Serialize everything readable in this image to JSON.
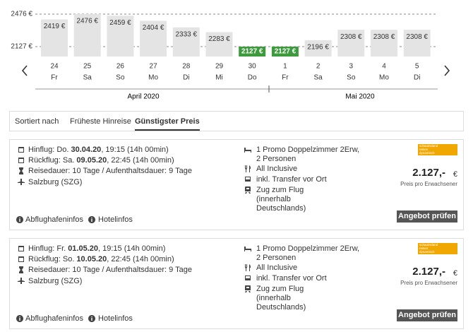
{
  "price_chart": {
    "type": "bar",
    "days": [
      "24",
      "25",
      "26",
      "27",
      "28",
      "29",
      "30",
      "1",
      "2",
      "3",
      "4",
      "5"
    ],
    "weekdays": [
      "Fr",
      "Sa",
      "So",
      "Mo",
      "Di",
      "Mi",
      "Do",
      "Fr",
      "Sa",
      "So",
      "Mo",
      "Di"
    ],
    "values": [
      2419,
      2476,
      2459,
      2404,
      2333,
      2283,
      2127,
      2127,
      2196,
      2308,
      2308,
      2308
    ],
    "value_labels": [
      "2419 €",
      "2476 €",
      "2459 €",
      "2404 €",
      "2333 €",
      "2283 €",
      "2127 €",
      "2127 €",
      "2196 €",
      "2308 €",
      "2308 €",
      "2308 €"
    ],
    "ylim": [
      2021,
      2476
    ],
    "yticks": [
      {
        "value": 2476,
        "label": "2476 €"
      },
      {
        "value": 2127,
        "label": "2127 €"
      }
    ],
    "color": "#e4e4e4",
    "highlight_color": "#3d9a3d",
    "months": [
      "April 2020",
      "Mai 2020"
    ]
  },
  "sort": {
    "label": "Sortiert nach",
    "options": [
      "Früheste Hinreise",
      "Günstigster Preis"
    ]
  },
  "offers": [
    {
      "outbound_label": "Hinflug: Do.",
      "outbound_date": "30.04.20",
      "outbound_time": ", 19:15 (14h 00min)",
      "return_label": "Rückflug: Sa.",
      "return_date": "09.05.20",
      "return_time": ", 22:45 (14h 00min)",
      "duration": "Reisedauer: 10 Tage / Aufenthaltsdauer: 9 Tage",
      "airport": "Salzburg (SZG)",
      "room": "1 Promo Doppelzimmer 2Erw, 2 Personen",
      "board": "All Inclusive",
      "transfer": "inkl. Transfer vor Ort",
      "train": "Zug zum Flug (innerhalb Deutschlands)",
      "logo": [
        "schauinsland",
        "reisen",
        "dynamisch"
      ],
      "price": "2.127,-",
      "currency": "€",
      "price_note": "Preis pro Erwachsener",
      "airport_info": "Abflughafeninfos",
      "hotel_info": "Hotelinfos",
      "button": "Angebot prüfen"
    },
    {
      "outbound_label": "Hinflug: Fr.",
      "outbound_date": "01.05.20",
      "outbound_time": ", 19:15 (14h 00min)",
      "return_label": "Rückflug: So.",
      "return_date": "10.05.20",
      "return_time": ", 22:45 (14h 00min)",
      "duration": "Reisedauer: 10 Tage / Aufenthaltsdauer: 9 Tage",
      "airport": "Salzburg (SZG)",
      "room": "1 Promo Doppelzimmer 2Erw, 2 Personen",
      "board": "All Inclusive",
      "transfer": "inkl. Transfer vor Ort",
      "train": "Zug zum Flug (innerhalb Deutschlands)",
      "logo": [
        "schauinsland",
        "reisen",
        "dynamisch"
      ],
      "price": "2.127,-",
      "currency": "€",
      "price_note": "Preis pro Erwachsener",
      "airport_info": "Abflughafeninfos",
      "hotel_info": "Hotelinfos",
      "button": "Angebot prüfen"
    }
  ]
}
